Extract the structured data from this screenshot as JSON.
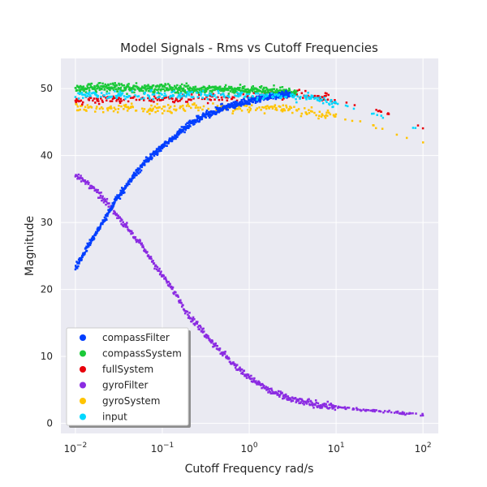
{
  "chart_data": {
    "type": "scatter",
    "title": "Model Signals - Rms vs Cutoff Frequencies",
    "xlabel": "Cutoff Frequency rad/s",
    "ylabel": "Magnitude",
    "xscale": "log",
    "xlim": [
      0.0068,
      150
    ],
    "ylim": [
      -1.5,
      54.5
    ],
    "xticks": [
      {
        "value": 0.01,
        "base": "10",
        "exp": "−2"
      },
      {
        "value": 0.1,
        "base": "10",
        "exp": "−1"
      },
      {
        "value": 1,
        "base": "10",
        "exp": "0"
      },
      {
        "value": 10,
        "base": "10",
        "exp": "1"
      },
      {
        "value": 100,
        "base": "10",
        "exp": "2"
      }
    ],
    "yticks": [
      0,
      10,
      20,
      30,
      40,
      50
    ],
    "grid": true,
    "legend_position": "lower-left",
    "series": [
      {
        "name": "compassFilter",
        "color": "#023eff",
        "x": [
          0.01,
          0.013,
          0.02,
          0.03,
          0.05,
          0.07,
          0.1,
          0.15,
          0.2,
          0.3,
          0.5,
          0.7,
          1.0,
          1.5,
          2.0,
          3.0
        ],
        "y": [
          23.2,
          25.8,
          29.7,
          33.6,
          37.4,
          39.6,
          41.3,
          43.2,
          44.6,
          45.9,
          47.1,
          47.6,
          48.2,
          48.7,
          48.9,
          49.2
        ]
      },
      {
        "name": "compassSystem",
        "color": "#1ac938",
        "x": [
          0.01,
          0.02,
          0.05,
          0.1,
          0.2,
          0.5,
          1.0,
          2.0,
          3.5
        ],
        "y": [
          50.1,
          50.2,
          50.0,
          50.1,
          49.9,
          50.0,
          49.8,
          49.7,
          49.4
        ]
      },
      {
        "name": "fullSystem",
        "color": "#e8000b",
        "x": [
          0.01,
          0.03,
          0.1,
          0.3,
          1.0,
          3.0,
          5.0,
          10.0,
          20.0,
          50.0,
          100.0
        ],
        "y": [
          48.3,
          48.4,
          48.5,
          48.6,
          48.8,
          49.0,
          49.0,
          48.2,
          47.5,
          45.8,
          44.2
        ]
      },
      {
        "name": "gyroFilter",
        "color": "#8b2be2",
        "x": [
          0.01,
          0.015,
          0.02,
          0.03,
          0.05,
          0.07,
          0.1,
          0.15,
          0.2,
          0.3,
          0.5,
          0.7,
          1.0,
          1.5,
          2.0,
          3.0,
          5.0,
          10.0,
          20.0,
          50.0,
          100.0
        ],
        "y": [
          37.2,
          35.4,
          33.8,
          31.2,
          27.6,
          25.0,
          22.0,
          19.0,
          16.2,
          13.6,
          10.4,
          8.5,
          6.9,
          5.3,
          4.5,
          3.6,
          3.0,
          2.4,
          2.0,
          1.6,
          1.3
        ]
      },
      {
        "name": "gyroSystem",
        "color": "#ffc400",
        "x": [
          0.01,
          0.03,
          0.1,
          0.3,
          1.0,
          3.0,
          5.0,
          10.0,
          20.0,
          50.0,
          100.0
        ],
        "y": [
          47.1,
          47.0,
          47.0,
          47.1,
          47.2,
          46.9,
          46.6,
          45.9,
          44.9,
          43.3,
          41.8
        ]
      },
      {
        "name": "input",
        "color": "#00d7ff",
        "x": [
          0.01,
          0.03,
          0.1,
          0.3,
          1.0,
          3.0,
          5.0,
          10.0,
          20.0,
          50.0,
          100.0
        ],
        "y": [
          49.0,
          49.0,
          49.0,
          49.0,
          49.0,
          48.8,
          48.6,
          47.8,
          46.8,
          45.2,
          43.7
        ]
      }
    ]
  }
}
